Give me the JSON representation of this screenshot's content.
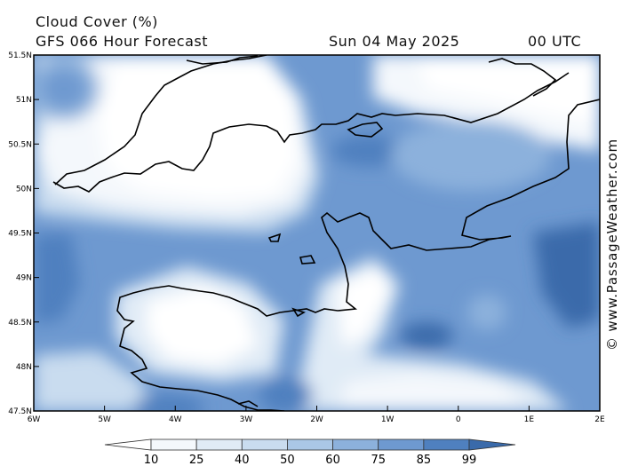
{
  "header": {
    "title": "Cloud Cover (%)",
    "subtitle": "GFS 066 Hour Forecast",
    "date": "Sun 04 May 2025",
    "time": "00 UTC"
  },
  "credit": "© www.PassageWeather.com",
  "map": {
    "lat_labels": [
      "51.5N",
      "51N",
      "50.5N",
      "50N",
      "49.5N",
      "49N",
      "48.5N",
      "48N",
      "47.5N"
    ],
    "lon_labels": [
      "6W",
      "5W",
      "4W",
      "3W",
      "2W",
      "1W",
      "0",
      "1E",
      "2E"
    ],
    "coastline_color": "#000000"
  },
  "legend": {
    "values": [
      "10",
      "25",
      "40",
      "50",
      "60",
      "75",
      "85",
      "99"
    ],
    "colors": [
      "#ffffff",
      "#f4f8fc",
      "#e0ebf6",
      "#c9dcef",
      "#aac7e6",
      "#8cb1dc",
      "#6e99d0",
      "#4f80bf",
      "#3a6aaa"
    ]
  }
}
